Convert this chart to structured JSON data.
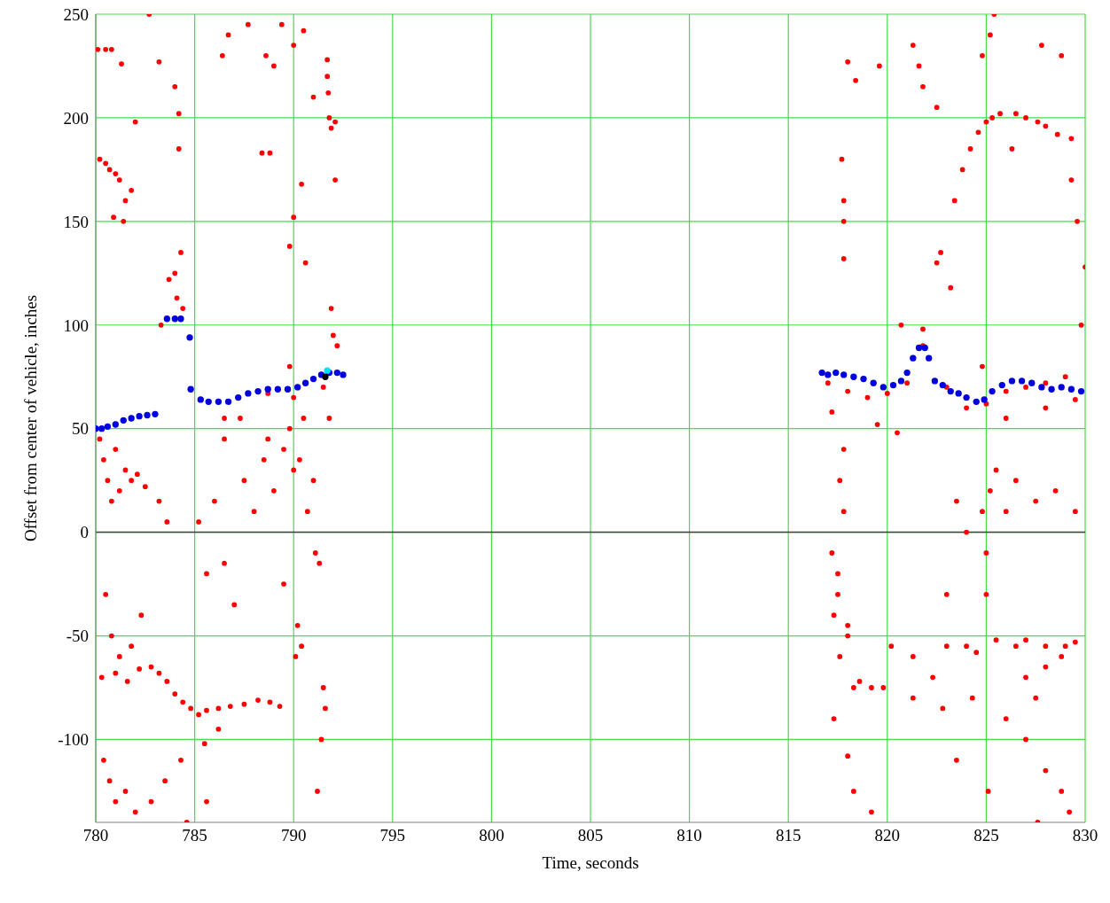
{
  "chart_data": {
    "type": "scatter",
    "xlabel": "Time, seconds",
    "ylabel": "Offset from center of vehicle, inches",
    "xlim": [
      780,
      830
    ],
    "xticks": [
      780,
      785,
      790,
      795,
      800,
      805,
      810,
      815,
      820,
      825,
      830
    ],
    "ylim": [
      -140,
      250
    ],
    "yticks": [
      -100,
      -50,
      0,
      50,
      100,
      150,
      200,
      250
    ],
    "grid": true,
    "legend": false,
    "marker": "circle",
    "ref_lines": [
      {
        "axis": "y",
        "value": 0,
        "color": "#404040"
      }
    ],
    "series": [
      {
        "color": "#ff0000",
        "x": [
          780.1,
          780.5,
          780.8,
          781.3,
          780.2,
          780.5,
          780.7,
          781.0,
          781.2,
          780.9,
          781.5,
          781.4,
          781.8,
          782.7,
          782.0,
          783.2,
          783.3,
          784.0,
          784.2,
          784.2,
          783.7,
          784.0,
          784.3,
          784.1,
          784.4,
          780.2,
          780.4,
          780.6,
          780.8,
          781.0,
          781.2,
          781.5,
          781.8,
          782.1,
          782.5,
          783.2,
          783.6,
          780.5,
          780.8,
          781.2,
          781.8,
          782.3,
          780.3,
          781.0,
          781.6,
          782.2,
          782.8,
          783.2,
          783.6,
          784.0,
          784.4,
          784.8,
          785.2,
          785.6,
          786.2,
          786.8,
          787.5,
          788.2,
          788.8,
          789.3,
          780.4,
          780.7,
          781.0,
          781.5,
          782.0,
          782.8,
          783.5,
          784.3,
          784.6,
          785.6,
          785.5,
          786.2,
          785.2,
          785.6,
          786.0,
          786.5,
          787.0,
          787.5,
          788.0,
          788.5,
          789.0,
          789.5,
          789.8,
          790.0,
          790.2,
          790.1,
          790.4,
          790.7,
          791.0,
          791.1,
          791.3,
          791.5,
          791.6,
          791.2,
          791.4,
          786.5,
          787.3,
          788.7,
          789.5,
          790.3,
          790.5,
          786.4,
          786.7,
          787.7,
          788.6,
          789.0,
          789.4,
          790.0,
          790.5,
          791.0,
          791.7,
          791.7,
          791.75,
          791.8,
          791.9,
          792.1,
          788.4,
          790.4,
          790.0,
          789.8,
          790.6,
          791.9,
          792.0,
          792.2,
          788.8,
          792.1,
          786.5,
          790,
          791.5,
          788.7,
          789.8,
          791.8
        ],
        "values": [
          233,
          233,
          233,
          226,
          180,
          178,
          175,
          173,
          170,
          152,
          160,
          150,
          165,
          250,
          198,
          227,
          100,
          215,
          202,
          185,
          122,
          125,
          135,
          113,
          108,
          45,
          35,
          25,
          15,
          40,
          20,
          30,
          25,
          28,
          22,
          15,
          5,
          -30,
          -50,
          -60,
          -55,
          -40,
          -70,
          -68,
          -72,
          -66,
          -65,
          -68,
          -72,
          -78,
          -82,
          -85,
          -88,
          -86,
          -85,
          -84,
          -83,
          -81,
          -82,
          -84,
          -110,
          -120,
          -130,
          -125,
          -135,
          -130,
          -120,
          -110,
          -140,
          -130,
          -102,
          -95,
          5,
          -20,
          15,
          -15,
          -35,
          25,
          10,
          35,
          20,
          -25,
          50,
          30,
          -45,
          -60,
          -55,
          10,
          25,
          -10,
          -15,
          -75,
          -85,
          -125,
          -100,
          45,
          55,
          45,
          40,
          35,
          55,
          230,
          240,
          245,
          230,
          225,
          245,
          235,
          242,
          210,
          220,
          228,
          212,
          200,
          195,
          198,
          183,
          168,
          152,
          138,
          130,
          108,
          95,
          90,
          183,
          170,
          55,
          65,
          70,
          67,
          80,
          55
        ]
      },
      {
        "color": "#ff0000",
        "x": [
          817.5,
          817.5,
          817.3,
          817.2,
          817.6,
          817.8,
          817.8,
          817.6,
          818.0,
          818.0,
          818.3,
          818.6,
          819.2,
          819.8,
          817.3,
          818.0,
          818.3,
          819.2,
          817.7,
          817.8,
          817.8,
          817.8,
          818.0,
          818.4,
          819.6,
          820.2,
          821.3,
          821.3,
          822.3,
          823.0,
          824.0,
          824.5,
          825.5,
          826.5,
          827.0,
          828.0,
          829.0,
          829.5,
          825.0,
          825.0,
          824.8,
          825.2,
          826.0,
          825.5,
          826.5,
          827.5,
          828.5,
          829.5,
          823.5,
          824.0,
          823.0,
          827.0,
          827.5,
          828.0,
          828.8,
          826.0,
          827.0,
          828.0,
          828.8,
          829.2,
          827.6,
          824.3,
          825.1,
          822.8,
          823.5,
          821.3,
          821.6,
          821.8,
          822.5,
          822.7,
          823.2,
          823.4,
          823.8,
          824.2,
          824.6,
          825.0,
          825.3,
          825.7,
          826.5,
          827.0,
          827.6,
          828.0,
          828.6,
          829.3,
          824.8,
          825.2,
          825.4,
          827.8,
          828.8,
          829.6,
          829.3,
          830,
          822.5,
          826.3,
          829.8,
          820.7,
          821.8,
          821.8,
          817,
          818,
          819,
          820,
          821,
          823,
          824,
          825,
          826,
          827,
          828,
          829,
          817.2,
          819.5,
          820.5,
          824.8,
          826,
          828,
          829.5
        ],
        "values": [
          -30,
          -20,
          -40,
          -10,
          25,
          40,
          10,
          -60,
          -50,
          -45,
          -75,
          -72,
          -75,
          -75,
          -90,
          -108,
          -125,
          -135,
          180,
          160,
          150,
          132,
          227,
          218,
          225,
          -55,
          -60,
          -80,
          -70,
          -55,
          -55,
          -58,
          -52,
          -55,
          -52,
          -55,
          -55,
          -53,
          -10,
          -30,
          10,
          20,
          10,
          30,
          25,
          15,
          20,
          10,
          15,
          0,
          -30,
          -70,
          -80,
          -65,
          -60,
          -90,
          -100,
          -115,
          -125,
          -135,
          -140,
          -80,
          -125,
          -85,
          -110,
          235,
          225,
          215,
          130,
          135,
          118,
          160,
          175,
          185,
          193,
          198,
          200,
          202,
          202,
          200,
          198,
          196,
          192,
          190,
          230,
          240,
          250,
          235,
          230,
          150,
          170,
          128,
          205,
          185,
          100,
          100,
          98,
          90,
          72,
          68,
          65,
          67,
          72,
          70,
          60,
          62,
          68,
          70,
          72,
          75,
          58,
          52,
          48,
          80,
          55,
          60,
          64
        ]
      },
      {
        "color": "#0000e0",
        "x": [
          780.0,
          780.3,
          780.6,
          781.0,
          781.4,
          781.8,
          782.2,
          782.6,
          783.0,
          783.6,
          784.0,
          784.3,
          784.75,
          784.8,
          785.3,
          785.7,
          786.2,
          786.7,
          787.2,
          787.7,
          788.2,
          788.7,
          789.2,
          789.7,
          790.2,
          790.6,
          791.0,
          791.4,
          791.8,
          792.2,
          792.5,
          816.7,
          817.0,
          817.4,
          817.8,
          818.3,
          818.8,
          819.3,
          819.8,
          820.3,
          820.7,
          821.0,
          821.3,
          821.6,
          821.9,
          822.1,
          822.4,
          822.8,
          823.2,
          823.6,
          824.0,
          824.5,
          824.9,
          825.3,
          825.8,
          826.3,
          826.8,
          827.3,
          827.8,
          828.3,
          828.8,
          829.3,
          829.8
        ],
        "values": [
          50,
          50,
          51,
          52,
          54,
          55,
          56,
          56.5,
          57,
          103,
          103,
          103,
          94,
          69,
          64,
          63,
          63,
          63,
          65,
          67,
          68,
          69,
          69,
          69,
          70,
          72,
          74,
          76,
          77,
          77,
          76,
          77,
          76,
          77,
          76,
          75,
          74,
          72,
          70,
          71,
          73,
          77,
          84,
          89,
          89,
          84,
          73,
          71,
          68,
          67,
          65,
          63,
          64,
          68,
          71,
          73,
          73,
          72,
          70,
          69,
          70,
          69,
          68
        ]
      },
      {
        "color": "#00e0ff",
        "x": [
          791.7
        ],
        "values": [
          78
        ]
      },
      {
        "color": "#000000",
        "x": [
          791.6
        ],
        "values": [
          75
        ]
      }
    ]
  }
}
